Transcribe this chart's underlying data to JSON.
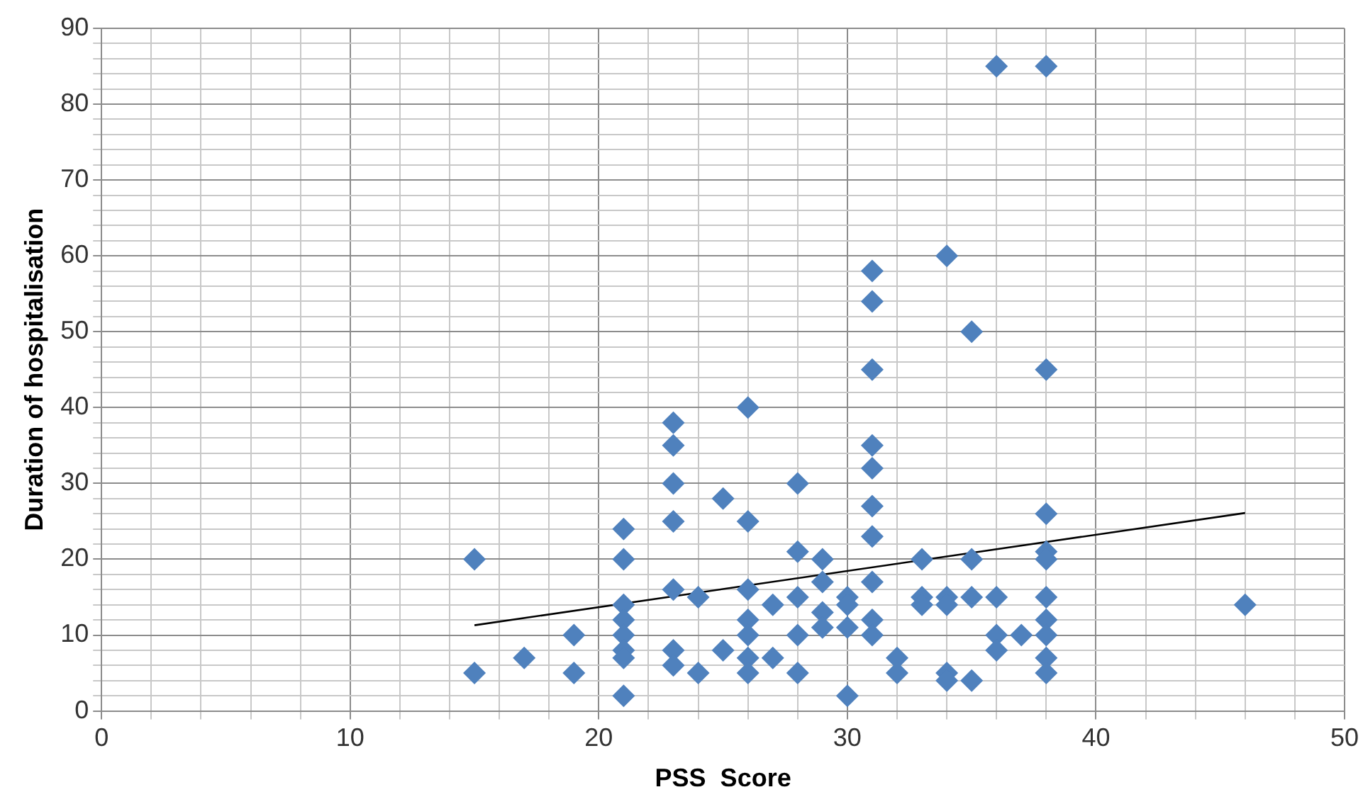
{
  "chart_data": {
    "type": "scatter",
    "xlabel": "PSS  Score",
    "ylabel": "Duration of hospitalisation",
    "xlim": [
      0,
      50
    ],
    "ylim": [
      0,
      90
    ],
    "xticks": [
      0,
      {
        "value": 2,
        "label": null
      },
      {
        "value": 4,
        "label": null
      },
      {
        "value": 6,
        "label": null
      },
      {
        "value": 8,
        "label": null
      },
      10,
      {
        "value": 12,
        "label": null
      },
      {
        "value": 14,
        "label": null
      },
      {
        "value": 16,
        "label": null
      },
      {
        "value": 18,
        "label": null
      },
      20,
      {
        "value": 22,
        "label": null
      },
      {
        "value": 24,
        "label": null
      },
      {
        "value": 26,
        "label": null
      },
      {
        "value": 28,
        "label": null
      },
      30,
      {
        "value": 32,
        "label": null
      },
      {
        "value": 34,
        "label": null
      },
      {
        "value": 36,
        "label": null
      },
      {
        "value": 38,
        "label": null
      },
      40,
      {
        "value": 42,
        "label": null
      },
      {
        "value": 44,
        "label": null
      },
      {
        "value": 46,
        "label": null
      },
      {
        "value": 48,
        "label": null
      },
      50
    ],
    "yticks": [
      0,
      {
        "value": 2,
        "label": null
      },
      {
        "value": 4,
        "label": null
      },
      {
        "value": 6,
        "label": null
      },
      {
        "value": 8,
        "label": null
      },
      10,
      {
        "value": 12,
        "label": null
      },
      {
        "value": 14,
        "label": null
      },
      {
        "value": 16,
        "label": null
      },
      {
        "value": 18,
        "label": null
      },
      20,
      {
        "value": 22,
        "label": null
      },
      {
        "value": 24,
        "label": null
      },
      {
        "value": 26,
        "label": null
      },
      {
        "value": 28,
        "label": null
      },
      30,
      {
        "value": 32,
        "label": null
      },
      {
        "value": 34,
        "label": null
      },
      {
        "value": 36,
        "label": null
      },
      {
        "value": 38,
        "label": null
      },
      40,
      {
        "value": 42,
        "label": null
      },
      {
        "value": 44,
        "label": null
      },
      {
        "value": 46,
        "label": null
      },
      {
        "value": 48,
        "label": null
      },
      50,
      {
        "value": 52,
        "label": null
      },
      {
        "value": 54,
        "label": null
      },
      {
        "value": 56,
        "label": null
      },
      {
        "value": 58,
        "label": null
      },
      60,
      {
        "value": 62,
        "label": null
      },
      {
        "value": 64,
        "label": null
      },
      {
        "value": 66,
        "label": null
      },
      {
        "value": 68,
        "label": null
      },
      70,
      {
        "value": 72,
        "label": null
      },
      {
        "value": 74,
        "label": null
      },
      {
        "value": 76,
        "label": null
      },
      {
        "value": 78,
        "label": null
      },
      80,
      {
        "value": 82,
        "label": null
      },
      {
        "value": 84,
        "label": null
      },
      {
        "value": 86,
        "label": null
      },
      {
        "value": 88,
        "label": null
      },
      90
    ],
    "grid": true,
    "legend": false,
    "marker": "diamond",
    "series": [
      {
        "color": "#4f81bd",
        "x": [
          15,
          15,
          17,
          19,
          19,
          21,
          21,
          21,
          21,
          21,
          21,
          21,
          21,
          23,
          23,
          23,
          23,
          23,
          23,
          23,
          24,
          24,
          25,
          25,
          26,
          26,
          26,
          26,
          26,
          26,
          26,
          27,
          27,
          28,
          28,
          28,
          28,
          28,
          29,
          29,
          29,
          29,
          30,
          30,
          30,
          30,
          31,
          31,
          31,
          31,
          31,
          31,
          31,
          31,
          31,
          31,
          32,
          32,
          33,
          33,
          33,
          34,
          34,
          34,
          34,
          34,
          35,
          35,
          35,
          35,
          36,
          36,
          36,
          36,
          37,
          38,
          38,
          38,
          38,
          38,
          38,
          38,
          38,
          38,
          38,
          46
        ],
        "values": [
          20,
          5,
          7,
          10,
          5,
          24,
          20,
          14,
          12,
          10,
          8,
          7,
          2,
          38,
          35,
          30,
          25,
          16,
          8,
          6,
          15,
          5,
          28,
          8,
          40,
          25,
          16,
          12,
          10,
          7,
          5,
          14,
          7,
          30,
          21,
          15,
          10,
          5,
          20,
          17,
          13,
          11,
          15,
          14,
          11,
          2,
          58,
          54,
          45,
          35,
          32,
          27,
          23,
          17,
          12,
          10,
          7,
          5,
          20,
          15,
          14,
          60,
          15,
          14,
          5,
          4,
          50,
          20,
          15,
          4,
          85,
          15,
          10,
          8,
          10,
          85,
          45,
          26,
          21,
          20,
          15,
          12,
          10,
          7,
          5,
          14
        ]
      },
      {
        "type": "line",
        "color": "#000000",
        "marker": "none",
        "x": [
          15,
          46
        ],
        "values": [
          11.3,
          26.1
        ]
      }
    ]
  }
}
